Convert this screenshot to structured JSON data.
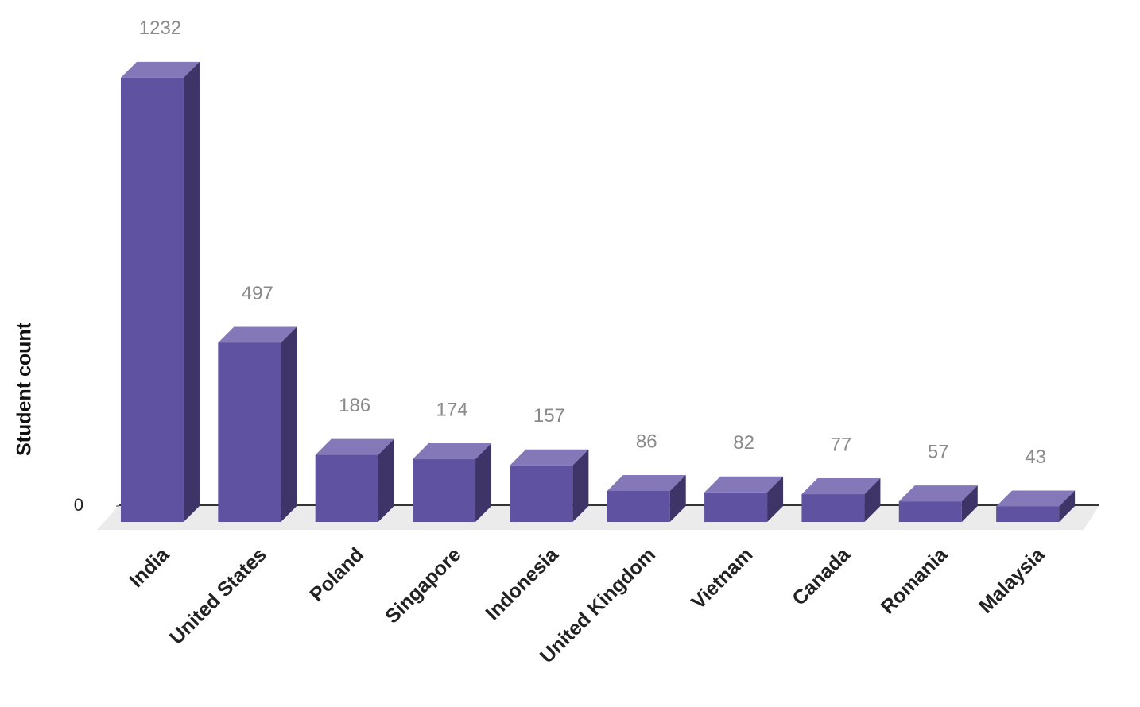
{
  "chart_data": {
    "type": "bar3d",
    "y_label": "Student count",
    "categories": [
      "India",
      "United States",
      "Poland",
      "Singapore",
      "Indonesia",
      "United Kingdom",
      "Vietnam",
      "Canada",
      "Romania",
      "Malaysia"
    ],
    "values": [
      1232,
      497,
      186,
      174,
      157,
      86,
      82,
      77,
      57,
      43
    ],
    "color": "#5f52a0",
    "ylim": [
      0,
      1300
    ],
    "yticks": [
      0
    ],
    "grid": false
  }
}
